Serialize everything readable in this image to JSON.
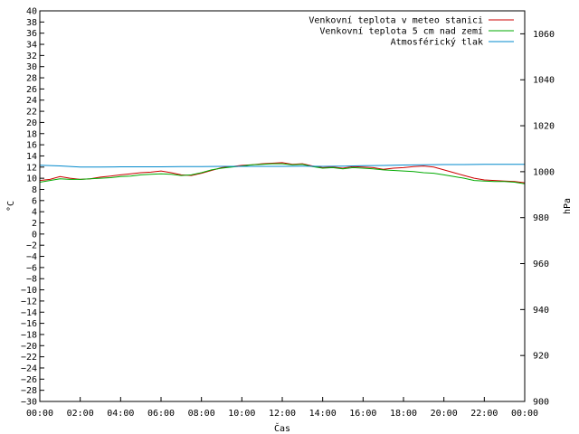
{
  "chart_data": {
    "type": "line",
    "xlabel": "Čas",
    "ylabel": "°C",
    "y2label": "hPa",
    "ylim": [
      -30,
      40
    ],
    "y2lim": [
      900,
      1070
    ],
    "yticks": [
      -30,
      -28,
      -26,
      -24,
      -22,
      -20,
      -18,
      -16,
      -14,
      -12,
      -10,
      -8,
      -6,
      -4,
      -2,
      0,
      2,
      4,
      6,
      8,
      10,
      12,
      14,
      16,
      18,
      20,
      22,
      24,
      26,
      28,
      30,
      32,
      34,
      36,
      38,
      40
    ],
    "ytick_labels": [
      "−30",
      "−28",
      "−26",
      "−24",
      "−22",
      "−20",
      "−18",
      "−16",
      "−14",
      "−12",
      "−10",
      "−8",
      "−6",
      "−4",
      "−2",
      "0",
      "2",
      "4",
      "6",
      "8",
      "10",
      "12",
      "14",
      "16",
      "18",
      "20",
      "22",
      "24",
      "26",
      "28",
      "30",
      "32",
      "34",
      "36",
      "38",
      "40"
    ],
    "y2ticks": [
      900,
      920,
      940,
      960,
      980,
      1000,
      1020,
      1040,
      1060
    ],
    "y2tick_labels": [
      "900",
      "920",
      "940",
      "960",
      "980",
      "1000",
      "1020",
      "1040",
      "1060"
    ],
    "xlim": [
      0,
      24
    ],
    "xticks": [
      0,
      2,
      4,
      6,
      8,
      10,
      12,
      14,
      16,
      18,
      20,
      22,
      24
    ],
    "xtick_labels": [
      "00:00",
      "02:00",
      "04:00",
      "06:00",
      "08:00",
      "10:00",
      "12:00",
      "14:00",
      "16:00",
      "18:00",
      "20:00",
      "22:00",
      "00:00"
    ],
    "grid": false,
    "legend_position": "top-right",
    "series": [
      {
        "name": "Venkovní teplota v meteo stanici",
        "color": "#cc0000",
        "axis": "left",
        "x": [
          0,
          0.5,
          1,
          1.5,
          2,
          2.5,
          3,
          3.5,
          4,
          4.5,
          5,
          5.5,
          6,
          6.5,
          7,
          7.5,
          8,
          8.5,
          9,
          9.5,
          10,
          10.5,
          11,
          11.5,
          12,
          12.5,
          13,
          13.5,
          14,
          14.5,
          15,
          15.5,
          16,
          16.5,
          17,
          17.5,
          18,
          18.5,
          19,
          19.5,
          20,
          20.5,
          21,
          21.5,
          22,
          22.5,
          23,
          23.5,
          24
        ],
        "y": [
          9.6,
          9.8,
          10.3,
          10.0,
          9.8,
          9.9,
          10.2,
          10.4,
          10.6,
          10.8,
          11.0,
          11.1,
          11.3,
          11.0,
          10.6,
          10.5,
          10.9,
          11.4,
          11.9,
          12.1,
          12.3,
          12.4,
          12.6,
          12.7,
          12.8,
          12.5,
          12.6,
          12.2,
          11.9,
          12.0,
          11.8,
          12.1,
          12.0,
          11.9,
          11.6,
          11.8,
          11.9,
          12.1,
          12.2,
          12.0,
          11.5,
          11.0,
          10.5,
          10.0,
          9.7,
          9.6,
          9.5,
          9.4,
          9.2
        ]
      },
      {
        "name": "Venkovní teplota 5 cm nad zemí",
        "color": "#00aa00",
        "axis": "left",
        "x": [
          0,
          0.5,
          1,
          1.5,
          2,
          2.5,
          3,
          3.5,
          4,
          4.5,
          5,
          5.5,
          6,
          6.5,
          7,
          7.5,
          8,
          8.5,
          9,
          9.5,
          10,
          10.5,
          11,
          11.5,
          12,
          12.5,
          13,
          13.5,
          14,
          14.5,
          15,
          15.5,
          16,
          16.5,
          17,
          17.5,
          18,
          18.5,
          19,
          19.5,
          20,
          20.5,
          21,
          21.5,
          22,
          22.5,
          23,
          23.5,
          24
        ],
        "y": [
          9.3,
          9.6,
          9.9,
          9.8,
          9.8,
          9.9,
          10.0,
          10.1,
          10.3,
          10.4,
          10.6,
          10.7,
          10.8,
          10.7,
          10.5,
          10.6,
          11.0,
          11.5,
          11.8,
          12.0,
          12.2,
          12.4,
          12.5,
          12.6,
          12.6,
          12.4,
          12.5,
          12.1,
          11.8,
          11.9,
          11.7,
          11.9,
          11.8,
          11.7,
          11.5,
          11.4,
          11.3,
          11.2,
          11.0,
          10.9,
          10.6,
          10.3,
          10.0,
          9.6,
          9.5,
          9.4,
          9.4,
          9.3,
          9.0
        ]
      },
      {
        "name": "Atmosférický tlak",
        "color": "#0088cc",
        "axis": "right",
        "x": [
          0,
          1,
          2,
          3,
          4,
          5,
          6,
          7,
          8,
          9,
          10,
          11,
          12,
          13,
          14,
          15,
          16,
          17,
          18,
          19,
          20,
          21,
          22,
          23,
          24
        ],
        "y": [
          1002.8,
          1002.5,
          1002.0,
          1002.0,
          1002.1,
          1002.1,
          1002.1,
          1002.2,
          1002.2,
          1002.3,
          1002.3,
          1002.3,
          1002.3,
          1002.4,
          1002.3,
          1002.4,
          1002.6,
          1002.7,
          1002.9,
          1003.0,
          1003.1,
          1003.1,
          1003.2,
          1003.2,
          1003.2
        ]
      }
    ]
  }
}
